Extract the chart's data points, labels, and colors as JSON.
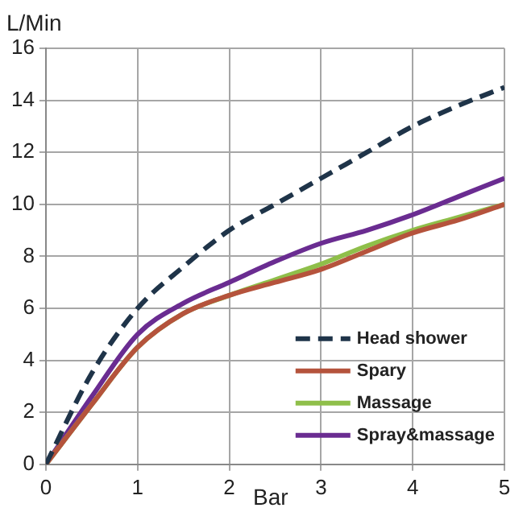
{
  "chart_data": {
    "type": "line",
    "xlabel": "Bar",
    "ylabel": "L/Min",
    "x": [
      0,
      0.5,
      1,
      1.5,
      2,
      2.5,
      3,
      3.5,
      4,
      4.5,
      5
    ],
    "xlim": [
      0,
      5
    ],
    "xticks": [
      0,
      1,
      2,
      3,
      4,
      5
    ],
    "ylim": [
      0,
      16
    ],
    "yticks": [
      0,
      2,
      4,
      6,
      8,
      10,
      12,
      14,
      16
    ],
    "grid": true,
    "legend": "bottom right",
    "marker": "none",
    "series": [
      {
        "name": "Head shower",
        "color": "#1f3449",
        "line_style": "dashed",
        "values": [
          0,
          3.5,
          6,
          7.6,
          9,
          10,
          11,
          12,
          13,
          13.8,
          14.5
        ]
      },
      {
        "name": "Spary",
        "color": "#b5533c",
        "values": [
          0,
          2.3,
          4.5,
          5.8,
          6.5,
          7,
          7.5,
          8.2,
          8.9,
          9.4,
          10
        ]
      },
      {
        "name": "Massage",
        "color": "#8fbf4a",
        "values": [
          0,
          2.3,
          4.5,
          5.8,
          6.5,
          7.1,
          7.7,
          8.4,
          9,
          9.5,
          10
        ]
      },
      {
        "name": "Spray&massage",
        "color": "#6a2c91",
        "values": [
          0,
          2.6,
          5,
          6.2,
          7,
          7.8,
          8.5,
          9,
          9.6,
          10.3,
          11
        ]
      }
    ]
  }
}
